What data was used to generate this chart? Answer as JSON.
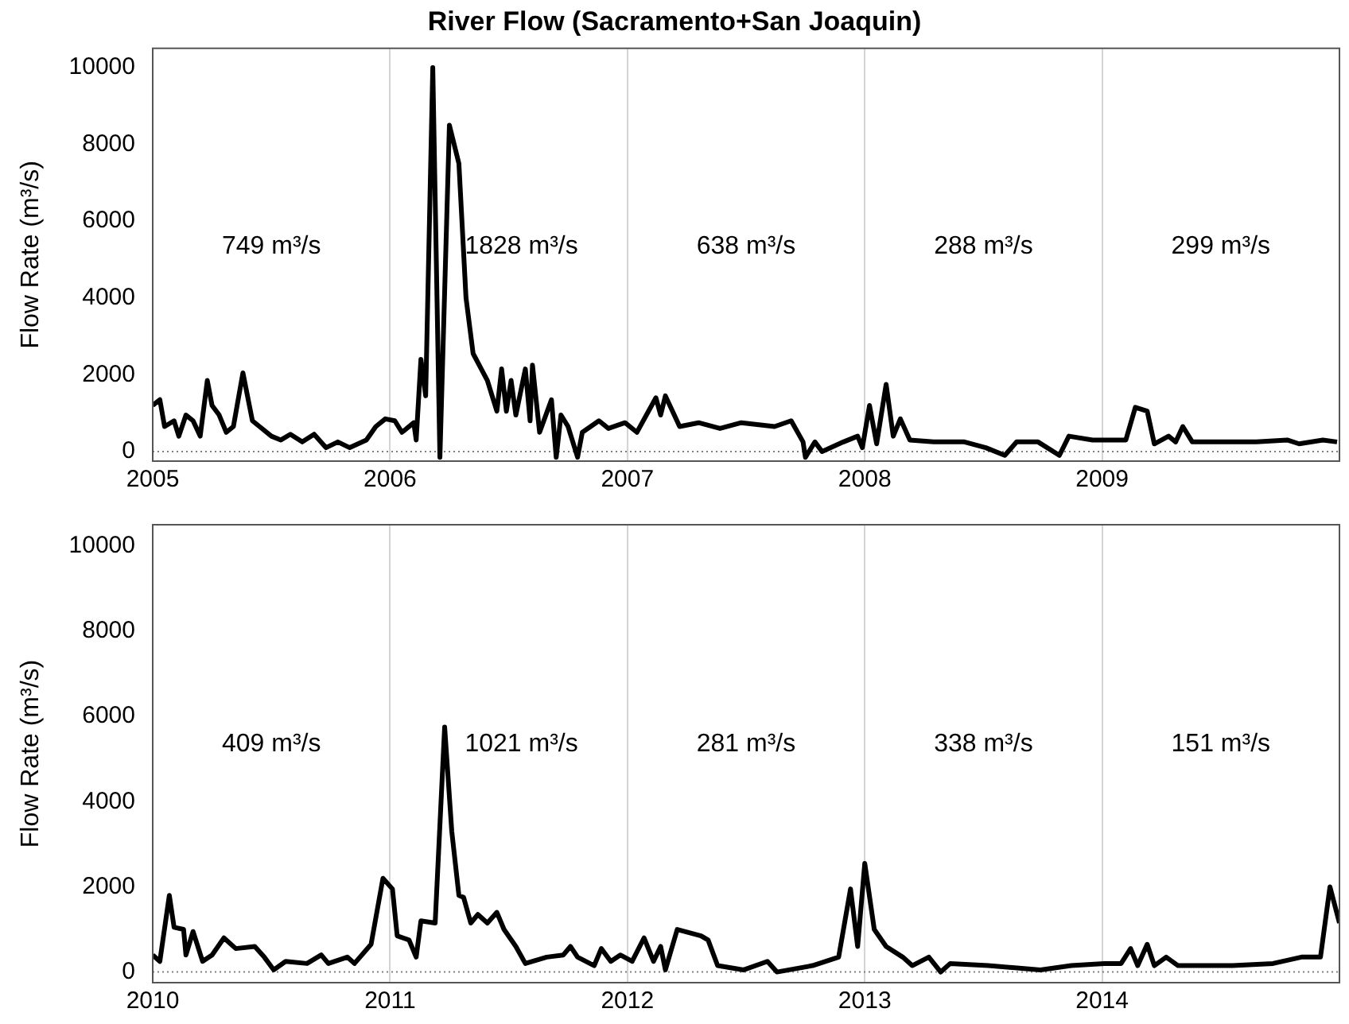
{
  "chart_data": [
    {
      "type": "line",
      "title": "River Flow (Sacramento+San Joaquin)",
      "ylabel": "Flow Rate (m³/s)",
      "color": "#000000",
      "x": [
        2005.0,
        2005.03,
        2005.05,
        2005.09,
        2005.11,
        2005.14,
        2005.17,
        2005.2,
        2005.23,
        2005.25,
        2005.28,
        2005.31,
        2005.34,
        2005.38,
        2005.42,
        2005.45,
        2005.5,
        2005.54,
        2005.58,
        2005.63,
        2005.68,
        2005.73,
        2005.78,
        2005.83,
        2005.9,
        2005.94,
        2005.98,
        2006.02,
        2006.05,
        2006.1,
        2006.11,
        2006.13,
        2006.15,
        2006.18,
        2006.21,
        2006.25,
        2006.29,
        2006.32,
        2006.35,
        2006.41,
        2006.45,
        2006.47,
        2006.49,
        2006.51,
        2006.53,
        2006.57,
        2006.59,
        2006.6,
        2006.63,
        2006.68,
        2006.7,
        2006.72,
        2006.75,
        2006.79,
        2006.81,
        2006.88,
        2006.92,
        2006.99,
        2007.04,
        2007.12,
        2007.14,
        2007.16,
        2007.22,
        2007.3,
        2007.39,
        2007.48,
        2007.62,
        2007.69,
        2007.74,
        2007.75,
        2007.79,
        2007.82,
        2007.91,
        2007.97,
        2007.99,
        2008.02,
        2008.05,
        2008.09,
        2008.12,
        2008.15,
        2008.19,
        2008.29,
        2008.42,
        2008.51,
        2008.59,
        2008.64,
        2008.73,
        2008.82,
        2008.86,
        2008.96,
        2009.02,
        2009.1,
        2009.14,
        2009.19,
        2009.22,
        2009.28,
        2009.31,
        2009.34,
        2009.38,
        2009.42,
        2009.53,
        2009.65,
        2009.78,
        2009.83,
        2009.93,
        2009.99
      ],
      "values": [
        1200,
        1350,
        650,
        800,
        400,
        950,
        800,
        400,
        1850,
        1200,
        950,
        500,
        650,
        2050,
        800,
        650,
        400,
        300,
        450,
        250,
        450,
        100,
        250,
        100,
        300,
        650,
        850,
        800,
        500,
        750,
        300,
        2400,
        1450,
        10000,
        -150,
        8500,
        7500,
        4000,
        2550,
        1850,
        1050,
        2150,
        1050,
        1850,
        950,
        2150,
        800,
        2250,
        500,
        1350,
        -150,
        950,
        650,
        -150,
        500,
        800,
        600,
        750,
        500,
        1400,
        950,
        1450,
        650,
        750,
        600,
        750,
        650,
        800,
        250,
        -150,
        250,
        0,
        250,
        400,
        100,
        1200,
        200,
        1750,
        400,
        850,
        300,
        250,
        250,
        100,
        -100,
        250,
        250,
        -100,
        400,
        300,
        300,
        300,
        1150,
        1050,
        200,
        400,
        250,
        650,
        250,
        250,
        250,
        250,
        300,
        200,
        300,
        250
      ],
      "xlim": [
        2005,
        2010
      ],
      "xticks": [
        2005,
        2006,
        2007,
        2008,
        2009
      ],
      "ylim": [
        -250,
        10500
      ],
      "yticks": [
        0,
        2000,
        4000,
        6000,
        8000,
        10000
      ],
      "grid": "x",
      "line_style": "solid",
      "ref_lines": [
        {
          "axis": "y",
          "value": 0,
          "color": "#808080",
          "line_style": "dotted"
        }
      ],
      "annotations": [
        "749 m³/s",
        "1828 m³/s",
        "638 m³/s",
        "288 m³/s",
        "299 m³/s"
      ]
    },
    {
      "type": "line",
      "ylabel": "Flow Rate (m³/s)",
      "color": "#000000",
      "x": [
        2010.0,
        2010.03,
        2010.07,
        2010.09,
        2010.13,
        2010.14,
        2010.17,
        2010.21,
        2010.25,
        2010.3,
        2010.35,
        2010.43,
        2010.47,
        2010.51,
        2010.56,
        2010.65,
        2010.71,
        2010.74,
        2010.82,
        2010.85,
        2010.92,
        2010.97,
        2011.01,
        2011.03,
        2011.08,
        2011.11,
        2011.13,
        2011.19,
        2011.23,
        2011.26,
        2011.29,
        2011.31,
        2011.34,
        2011.37,
        2011.41,
        2011.45,
        2011.48,
        2011.53,
        2011.57,
        2011.66,
        2011.73,
        2011.76,
        2011.79,
        2011.86,
        2011.89,
        2011.93,
        2011.97,
        2012.02,
        2012.07,
        2012.11,
        2012.14,
        2012.16,
        2012.21,
        2012.31,
        2012.34,
        2012.38,
        2012.49,
        2012.59,
        2012.63,
        2012.78,
        2012.89,
        2012.94,
        2012.97,
        2013.0,
        2013.04,
        2013.09,
        2013.16,
        2013.2,
        2013.27,
        2013.32,
        2013.36,
        2013.52,
        2013.74,
        2013.87,
        2014.01,
        2014.08,
        2014.12,
        2014.15,
        2014.19,
        2014.22,
        2014.27,
        2014.32,
        2014.55,
        2014.72,
        2014.84,
        2014.92,
        2014.96,
        2015.0
      ],
      "values": [
        400,
        250,
        1800,
        1050,
        1000,
        400,
        950,
        250,
        400,
        800,
        550,
        600,
        350,
        50,
        250,
        200,
        400,
        200,
        350,
        200,
        650,
        2200,
        1950,
        850,
        750,
        350,
        1200,
        1150,
        5750,
        3300,
        1800,
        1750,
        1150,
        1350,
        1150,
        1400,
        1000,
        600,
        200,
        350,
        400,
        600,
        350,
        150,
        550,
        250,
        400,
        250,
        800,
        250,
        600,
        50,
        1000,
        850,
        750,
        150,
        50,
        250,
        0,
        150,
        350,
        1950,
        600,
        2550,
        1000,
        600,
        350,
        150,
        350,
        0,
        200,
        150,
        50,
        150,
        200,
        200,
        550,
        150,
        650,
        150,
        350,
        150,
        150,
        200,
        350,
        350,
        2000,
        1150
      ],
      "xlim": [
        2010,
        2015
      ],
      "xticks": [
        2010,
        2011,
        2012,
        2013,
        2014
      ],
      "ylim": [
        -250,
        10500
      ],
      "yticks": [
        0,
        2000,
        4000,
        6000,
        8000,
        10000
      ],
      "grid": "x",
      "line_style": "solid",
      "ref_lines": [
        {
          "axis": "y",
          "value": 0,
          "color": "#808080",
          "line_style": "dotted"
        }
      ],
      "annotations": [
        "409 m³/s",
        "1021 m³/s",
        "281 m³/s",
        "338 m³/s",
        "151 m³/s"
      ]
    }
  ]
}
